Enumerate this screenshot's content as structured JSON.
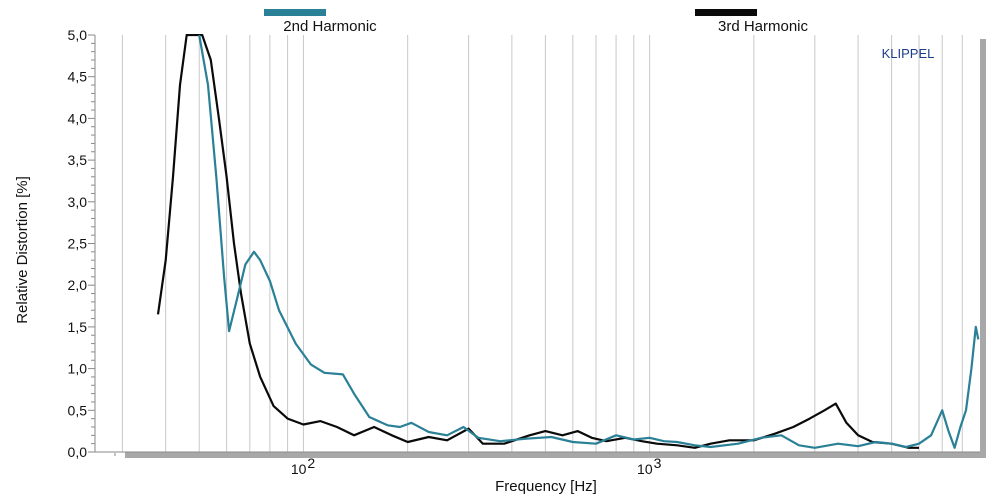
{
  "chart_data": {
    "type": "line",
    "title": "",
    "xlabel": "Frequency  [Hz]",
    "ylabel": "Relative Distortion  [%]",
    "brand": "KLIPPEL",
    "x_scale": "log",
    "xlim": [
      25,
      9000
    ],
    "ylim": [
      0,
      5
    ],
    "grid": true,
    "legend_position": "top",
    "yticks": [
      {
        "value": 0.0,
        "label": "0,0"
      },
      {
        "value": 0.5,
        "label": "0,5"
      },
      {
        "value": 1.0,
        "label": "1,0"
      },
      {
        "value": 1.5,
        "label": "1,5"
      },
      {
        "value": 2.0,
        "label": "2,0"
      },
      {
        "value": 2.5,
        "label": "2,5"
      },
      {
        "value": 3.0,
        "label": "3,0"
      },
      {
        "value": 3.5,
        "label": "3,5"
      },
      {
        "value": 4.0,
        "label": "4,0"
      },
      {
        "value": 4.5,
        "label": "4,5"
      },
      {
        "value": 5.0,
        "label": "5,0"
      }
    ],
    "xticks": [
      {
        "value": 100,
        "base": "10",
        "exp": "2"
      },
      {
        "value": 1000,
        "base": "10",
        "exp": "3"
      }
    ],
    "series": [
      {
        "name": "2nd Harmonic",
        "color": "#2a8096",
        "points": [
          [
            50,
            5.0
          ],
          [
            53,
            4.4
          ],
          [
            56,
            3.3
          ],
          [
            59,
            2.1
          ],
          [
            61,
            1.45
          ],
          [
            64,
            1.8
          ],
          [
            68,
            2.25
          ],
          [
            72,
            2.4
          ],
          [
            75,
            2.3
          ],
          [
            80,
            2.05
          ],
          [
            85,
            1.7
          ],
          [
            95,
            1.3
          ],
          [
            105,
            1.05
          ],
          [
            115,
            0.95
          ],
          [
            130,
            0.93
          ],
          [
            140,
            0.7
          ],
          [
            155,
            0.42
          ],
          [
            175,
            0.32
          ],
          [
            190,
            0.3
          ],
          [
            205,
            0.35
          ],
          [
            230,
            0.24
          ],
          [
            260,
            0.2
          ],
          [
            290,
            0.3
          ],
          [
            320,
            0.17
          ],
          [
            370,
            0.13
          ],
          [
            440,
            0.16
          ],
          [
            520,
            0.18
          ],
          [
            600,
            0.12
          ],
          [
            700,
            0.1
          ],
          [
            800,
            0.2
          ],
          [
            900,
            0.15
          ],
          [
            1000,
            0.17
          ],
          [
            1100,
            0.13
          ],
          [
            1200,
            0.12
          ],
          [
            1350,
            0.08
          ],
          [
            1500,
            0.06
          ],
          [
            1800,
            0.1
          ],
          [
            2100,
            0.17
          ],
          [
            2400,
            0.2
          ],
          [
            2700,
            0.08
          ],
          [
            3000,
            0.05
          ],
          [
            3500,
            0.1
          ],
          [
            4000,
            0.07
          ],
          [
            4500,
            0.12
          ],
          [
            5000,
            0.1
          ],
          [
            5500,
            0.06
          ],
          [
            6000,
            0.1
          ],
          [
            6500,
            0.2
          ],
          [
            7000,
            0.5
          ],
          [
            7300,
            0.25
          ],
          [
            7600,
            0.05
          ],
          [
            7900,
            0.3
          ],
          [
            8200,
            0.5
          ],
          [
            8500,
            1.0
          ],
          [
            8750,
            1.5
          ],
          [
            8900,
            1.35
          ]
        ]
      },
      {
        "name": "3rd Harmonic",
        "color": "#0a0a0a",
        "points": [
          [
            38,
            1.65
          ],
          [
            40,
            2.3
          ],
          [
            42,
            3.3
          ],
          [
            44,
            4.4
          ],
          [
            46,
            5.0
          ],
          [
            51,
            5.0
          ],
          [
            54,
            4.7
          ],
          [
            57,
            4.0
          ],
          [
            60,
            3.3
          ],
          [
            63,
            2.5
          ],
          [
            66,
            1.9
          ],
          [
            70,
            1.3
          ],
          [
            75,
            0.9
          ],
          [
            82,
            0.55
          ],
          [
            90,
            0.4
          ],
          [
            100,
            0.33
          ],
          [
            112,
            0.37
          ],
          [
            125,
            0.3
          ],
          [
            140,
            0.2
          ],
          [
            160,
            0.3
          ],
          [
            180,
            0.2
          ],
          [
            200,
            0.12
          ],
          [
            230,
            0.18
          ],
          [
            260,
            0.14
          ],
          [
            300,
            0.28
          ],
          [
            330,
            0.1
          ],
          [
            380,
            0.1
          ],
          [
            450,
            0.2
          ],
          [
            500,
            0.25
          ],
          [
            560,
            0.2
          ],
          [
            620,
            0.25
          ],
          [
            680,
            0.17
          ],
          [
            750,
            0.13
          ],
          [
            850,
            0.17
          ],
          [
            950,
            0.13
          ],
          [
            1050,
            0.1
          ],
          [
            1200,
            0.08
          ],
          [
            1350,
            0.05
          ],
          [
            1500,
            0.1
          ],
          [
            1700,
            0.14
          ],
          [
            2000,
            0.14
          ],
          [
            2300,
            0.22
          ],
          [
            2600,
            0.3
          ],
          [
            2900,
            0.4
          ],
          [
            3200,
            0.5
          ],
          [
            3450,
            0.58
          ],
          [
            3700,
            0.35
          ],
          [
            4000,
            0.2
          ],
          [
            4400,
            0.12
          ],
          [
            5000,
            0.1
          ],
          [
            5600,
            0.05
          ],
          [
            6000,
            0.05
          ]
        ]
      }
    ]
  }
}
